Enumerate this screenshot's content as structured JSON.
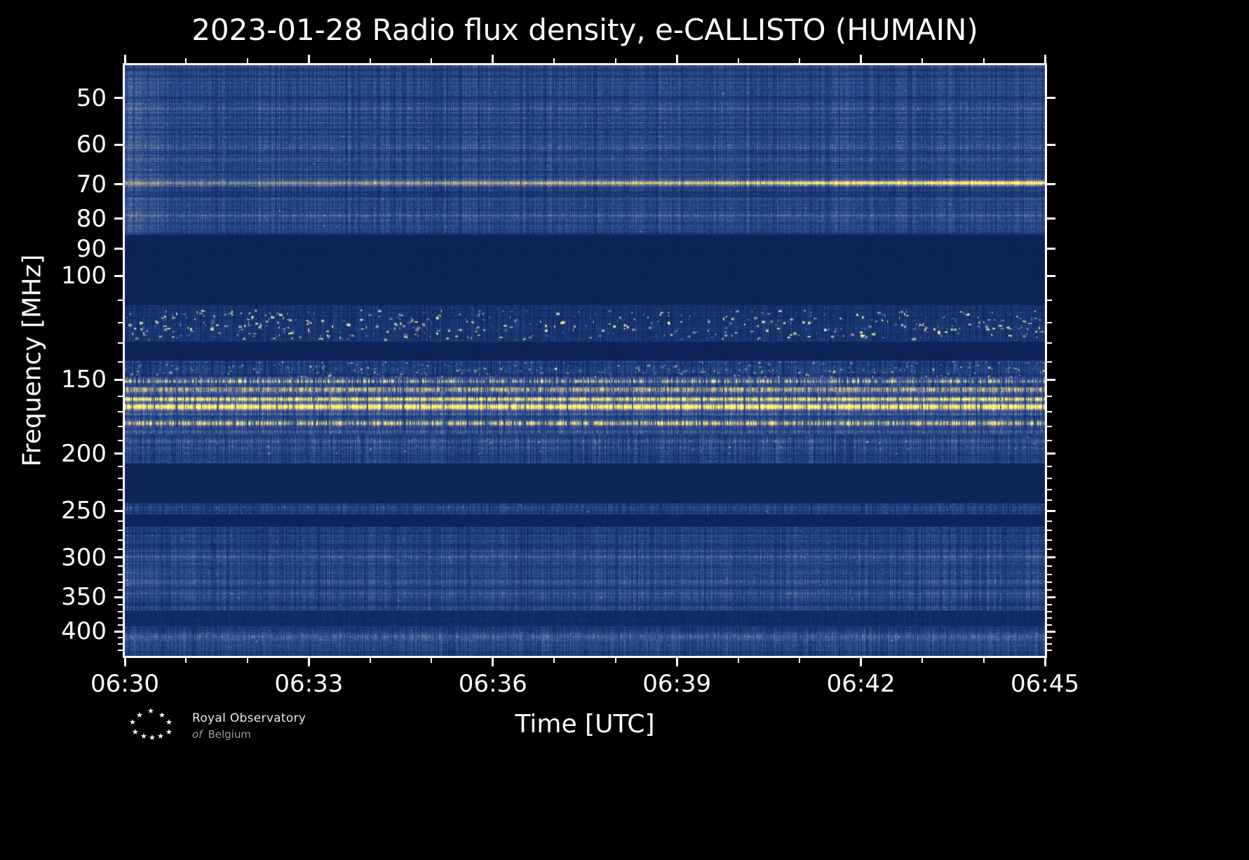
{
  "logo": {
    "line1": "Royal Observatory",
    "of": "of",
    "country": "Belgium",
    "star_glyph": "★"
  },
  "chart_data": {
    "type": "heatmap",
    "title": "2023-01-28 Radio flux density, e-CALLISTO (HUMAIN)",
    "xlabel": "Time [UTC]",
    "ylabel": "Frequency [MHz]",
    "x_range_utc": [
      "06:30",
      "06:45"
    ],
    "x_span_minutes": 15,
    "x_tick_labels": [
      "06:30",
      "06:33",
      "06:36",
      "06:39",
      "06:42",
      "06:45"
    ],
    "x_major_tick_minutes": [
      0,
      3,
      6,
      9,
      12,
      15
    ],
    "x_minor_tick_minutes": [
      1,
      2,
      4,
      5,
      7,
      8,
      10,
      11,
      13,
      14
    ],
    "y_scale": "log",
    "y_range_mhz": [
      44,
      440
    ],
    "y_tick_labels": [
      "50",
      "60",
      "70",
      "80",
      "90",
      "100",
      "150",
      "200",
      "250",
      "300",
      "350",
      "400"
    ],
    "y_major_ticks": [
      50,
      60,
      70,
      80,
      90,
      100,
      150,
      200,
      250,
      300,
      350,
      400
    ],
    "y_minor_ticks": [
      110,
      120,
      130,
      140,
      160,
      170,
      180,
      190,
      210,
      220,
      230,
      240,
      260,
      270,
      280,
      290,
      310,
      320,
      330,
      340,
      360,
      370,
      380,
      390,
      410,
      420,
      430
    ],
    "colormap_stops": [
      {
        "pos": 0.0,
        "color": "#0A1C50"
      },
      {
        "pos": 0.2,
        "color": "#1A346F"
      },
      {
        "pos": 0.38,
        "color": "#2A4C8F"
      },
      {
        "pos": 0.52,
        "color": "#50639B"
      },
      {
        "pos": 0.66,
        "color": "#8A8A8C"
      },
      {
        "pos": 0.78,
        "color": "#B5AD7E"
      },
      {
        "pos": 0.88,
        "color": "#E0D272"
      },
      {
        "pos": 1.0,
        "color": "#FFF882"
      }
    ],
    "bands": [
      {
        "f1": 44,
        "f2": 85,
        "base": 0.3,
        "tex": 0.55,
        "flick": 0.38,
        "pix": 0.1
      },
      {
        "f1": 85,
        "f2": 112,
        "base": 0.055,
        "tex": 0.12,
        "flick": 0.08,
        "pix": 0.015
      },
      {
        "f1": 112,
        "f2": 129,
        "base": 0.2,
        "tex": 0.35,
        "flick": 0.45,
        "pix": 0.08
      },
      {
        "f1": 129,
        "f2": 139,
        "base": 0.055,
        "tex": 0.12,
        "flick": 0.08,
        "pix": 0.015
      },
      {
        "f1": 139,
        "f2": 148,
        "base": 0.26,
        "tex": 0.4,
        "flick": 0.5,
        "pix": 0.1
      },
      {
        "f1": 148,
        "f2": 154,
        "base": 0.3,
        "tex": 0.45,
        "flick": 0.45,
        "pix": 0.1
      },
      {
        "f1": 154,
        "f2": 185,
        "base": 0.3,
        "tex": 0.45,
        "flick": 0.42,
        "pix": 0.1
      },
      {
        "f1": 185,
        "f2": 207,
        "base": 0.29,
        "tex": 0.5,
        "flick": 0.45,
        "pix": 0.1
      },
      {
        "f1": 207,
        "f2": 242,
        "base": 0.06,
        "tex": 0.12,
        "flick": 0.08,
        "pix": 0.015
      },
      {
        "f1": 242,
        "f2": 253,
        "base": 0.25,
        "tex": 0.45,
        "flick": 0.5,
        "pix": 0.09
      },
      {
        "f1": 253,
        "f2": 266,
        "base": 0.065,
        "tex": 0.12,
        "flick": 0.08,
        "pix": 0.015
      },
      {
        "f1": 266,
        "f2": 368,
        "base": 0.29,
        "tex": 0.5,
        "flick": 0.42,
        "pix": 0.1
      },
      {
        "f1": 368,
        "f2": 392,
        "base": 0.13,
        "tex": 0.35,
        "flick": 0.3,
        "pix": 0.05
      },
      {
        "f1": 392,
        "f2": 440,
        "base": 0.27,
        "tex": 0.5,
        "flick": 0.42,
        "pix": 0.1
      }
    ],
    "lines": [
      {
        "f": 52.0,
        "sig": 2.0,
        "add": 0.12,
        "flick": 0.5
      },
      {
        "f": 55.0,
        "sig": 1.5,
        "add": 0.08,
        "flick": 0.5
      },
      {
        "f": 60.5,
        "sig": 2.0,
        "add": 0.15,
        "flick": 0.5
      },
      {
        "f": 63.5,
        "sig": 1.5,
        "add": 0.1,
        "flick": 0.5
      },
      {
        "f": 66.0,
        "sig": 1.4,
        "add": 0.07,
        "flick": 0.5
      },
      {
        "f": 69.5,
        "sig": 2.2,
        "add": 1.0,
        "ramp": [
          0.33,
          0.8
        ],
        "pow": 1.2,
        "flick": 0.22
      },
      {
        "f": 74.0,
        "sig": 1.6,
        "add": 0.1,
        "flick": 0.5
      },
      {
        "f": 79.0,
        "sig": 2.4,
        "add": 0.17,
        "flick": 0.45
      },
      {
        "f": 82.5,
        "sig": 1.6,
        "add": 0.08,
        "flick": 0.5
      },
      {
        "f": 150.6,
        "sig": 2.0,
        "add": 0.5,
        "drop": 0.3,
        "dropf": 0.25,
        "flick": 0.7,
        "cal": true
      },
      {
        "f": 155.6,
        "sig": 2.2,
        "add": 0.52,
        "drop": 0.1,
        "dropf": 0.3,
        "flick": 0.45,
        "cal": true
      },
      {
        "f": 161.5,
        "sig": 2.2,
        "add": 0.62,
        "drop": 0.05,
        "dropf": 0.3,
        "flick": 0.35,
        "cal": true
      },
      {
        "f": 166.5,
        "sig": 3.2,
        "add": 0.78,
        "drop": 0.04,
        "dropf": 0.35,
        "flick": 0.22,
        "cal": true
      },
      {
        "f": 171.5,
        "sig": 1.8,
        "add": 0.16,
        "flick": 0.5,
        "cal": true
      },
      {
        "f": 177.5,
        "sig": 2.6,
        "add": 0.5,
        "drop": 0.22,
        "dropf": 0.3,
        "flick": 0.6,
        "cal": true
      },
      {
        "f": 183.0,
        "sig": 1.6,
        "add": 0.12,
        "flick": 0.5
      },
      {
        "f": 190.5,
        "sig": 1.8,
        "add": 0.09,
        "flick": 0.5
      },
      {
        "f": 197.0,
        "sig": 1.5,
        "add": 0.06,
        "flick": 0.5
      },
      {
        "f": 247.5,
        "sig": 2.0,
        "add": 0.07,
        "flick": 0.5
      },
      {
        "f": 298.5,
        "sig": 2.6,
        "add": 0.14,
        "flick": 0.5
      },
      {
        "f": 303.0,
        "sig": 1.8,
        "add": 0.08,
        "flick": 0.5
      },
      {
        "f": 329.0,
        "sig": 2.2,
        "add": 0.07,
        "flick": 0.5
      },
      {
        "f": 343.0,
        "sig": 2.4,
        "add": 0.1,
        "flick": 0.5
      },
      {
        "f": 407.5,
        "sig": 2.6,
        "add": 0.26,
        "drop": 0.06,
        "dropf": 0.4,
        "flick": 0.45
      },
      {
        "f": 413.0,
        "sig": 1.8,
        "add": 0.1,
        "flick": 0.5
      },
      {
        "f": 421.0,
        "sig": 1.6,
        "add": 0.06,
        "flick": 0.5
      }
    ],
    "patches": [
      {
        "f1": 45,
        "f2": 85,
        "w": 68,
        "add": 0.13
      },
      {
        "f1": 310,
        "f2": 338,
        "w": 95,
        "add": 0.09
      }
    ],
    "speckle_bands": [
      {
        "f1": 114,
        "f2": 127.5,
        "count": 520,
        "vmin": 0.25,
        "vmax": 0.95,
        "wmin": 1,
        "wmax": 5,
        "hmin": 2,
        "hmax": 5
      },
      {
        "f1": 139.5,
        "f2": 147.5,
        "count": 420,
        "vmin": 0.15,
        "vmax": 0.55,
        "wmin": 1,
        "wmax": 4,
        "hmin": 2,
        "hmax": 4
      },
      {
        "f1": 186,
        "f2": 200,
        "count": 110,
        "vmin": 0.12,
        "vmax": 0.4,
        "wmin": 1,
        "wmax": 3,
        "hmin": 2,
        "hmax": 3
      },
      {
        "f1": 243,
        "f2": 252,
        "count": 80,
        "vmin": 0.1,
        "vmax": 0.35,
        "wmin": 1,
        "wmax": 3,
        "hmin": 2,
        "hmax": 3
      },
      {
        "f1": 46,
        "f2": 84,
        "count": 260,
        "vmin": 0.08,
        "vmax": 0.28,
        "wmin": 1,
        "wmax": 3,
        "hmin": 2,
        "hmax": 3
      },
      {
        "f1": 267,
        "f2": 360,
        "count": 260,
        "vmin": 0.06,
        "vmax": 0.22,
        "wmin": 1,
        "wmax": 3,
        "hmin": 2,
        "hmax": 3
      },
      {
        "f1": 396,
        "f2": 430,
        "count": 120,
        "vmin": 0.06,
        "vmax": 0.22,
        "wmin": 1,
        "wmax": 3,
        "hmin": 2,
        "hmax": 3
      }
    ]
  }
}
